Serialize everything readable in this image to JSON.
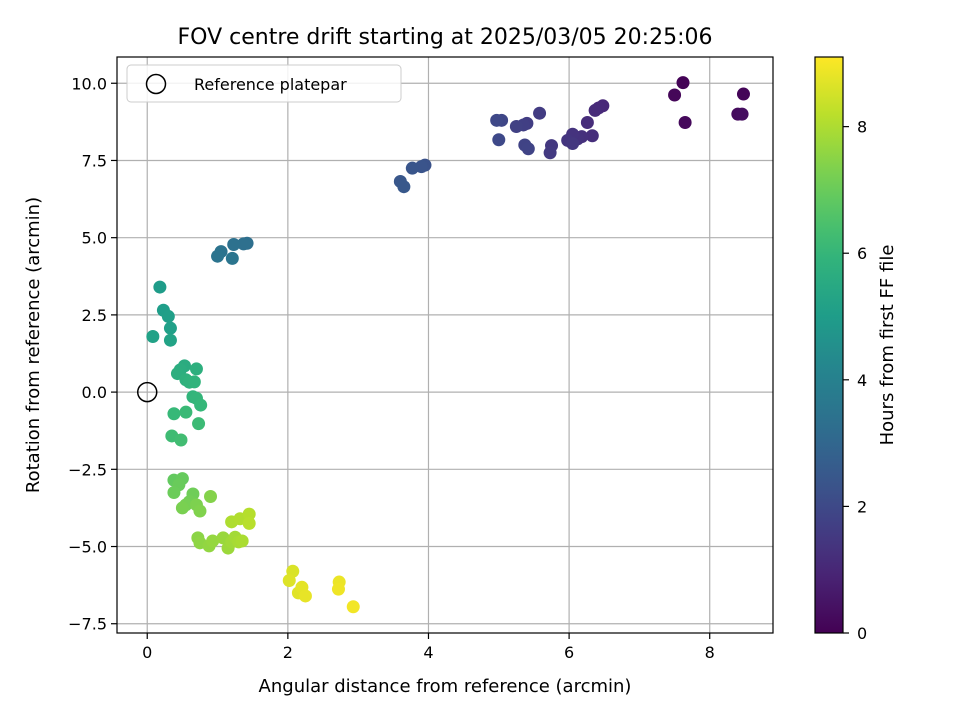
{
  "chart_data": {
    "type": "scatter",
    "title": "FOV centre drift starting at 2025/03/05 20:25:06",
    "xlabel": "Angular distance from reference (arcmin)",
    "ylabel": "Rotation from reference (arcmin)",
    "xlim": [
      -0.43,
      8.9
    ],
    "ylim": [
      -7.8,
      10.85
    ],
    "xticks": [
      "0",
      "2",
      "4",
      "6",
      "8"
    ],
    "yticks": [
      "−7.5",
      "−5.0",
      "−2.5",
      "0.0",
      "2.5",
      "5.0",
      "7.5",
      "10.0"
    ],
    "grid": true,
    "legend": {
      "placement": "top-left",
      "entries": [
        "Reference platepar"
      ]
    },
    "reference_point": {
      "x": 0,
      "y": 0
    },
    "colorbar": {
      "label": "Hours from first FF file",
      "range": [
        0,
        9.1
      ],
      "ticks": [
        "0",
        "2",
        "4",
        "6",
        "8"
      ],
      "colormap": "viridis"
    },
    "points": [
      {
        "x": 7.62,
        "y": 10.02,
        "c": 0.05
      },
      {
        "x": 8.48,
        "y": 9.65,
        "c": 0.1
      },
      {
        "x": 7.5,
        "y": 9.62,
        "c": 0.15
      },
      {
        "x": 7.65,
        "y": 8.73,
        "c": 0.2
      },
      {
        "x": 8.4,
        "y": 9.0,
        "c": 0.25
      },
      {
        "x": 8.46,
        "y": 9.0,
        "c": 0.3
      },
      {
        "x": 6.48,
        "y": 9.27,
        "c": 1.0
      },
      {
        "x": 6.42,
        "y": 9.2,
        "c": 1.05
      },
      {
        "x": 6.37,
        "y": 9.12,
        "c": 1.1
      },
      {
        "x": 6.26,
        "y": 8.73,
        "c": 1.15
      },
      {
        "x": 6.33,
        "y": 8.3,
        "c": 1.2
      },
      {
        "x": 6.18,
        "y": 8.27,
        "c": 1.25
      },
      {
        "x": 6.12,
        "y": 8.2,
        "c": 1.3
      },
      {
        "x": 6.05,
        "y": 8.35,
        "c": 1.35
      },
      {
        "x": 5.98,
        "y": 8.15,
        "c": 1.4
      },
      {
        "x": 6.05,
        "y": 8.05,
        "c": 1.45
      },
      {
        "x": 5.75,
        "y": 7.98,
        "c": 1.5
      },
      {
        "x": 5.73,
        "y": 7.75,
        "c": 1.55
      },
      {
        "x": 5.58,
        "y": 9.03,
        "c": 1.6
      },
      {
        "x": 5.4,
        "y": 8.7,
        "c": 1.65
      },
      {
        "x": 5.35,
        "y": 8.65,
        "c": 1.7
      },
      {
        "x": 5.25,
        "y": 8.6,
        "c": 1.75
      },
      {
        "x": 5.37,
        "y": 8.0,
        "c": 1.8
      },
      {
        "x": 5.42,
        "y": 7.88,
        "c": 1.85
      },
      {
        "x": 5.04,
        "y": 8.8,
        "c": 1.9
      },
      {
        "x": 4.97,
        "y": 8.8,
        "c": 1.95
      },
      {
        "x": 5.0,
        "y": 8.17,
        "c": 2.0
      },
      {
        "x": 3.95,
        "y": 7.35,
        "c": 2.3
      },
      {
        "x": 3.9,
        "y": 7.3,
        "c": 2.35
      },
      {
        "x": 3.77,
        "y": 7.25,
        "c": 2.4
      },
      {
        "x": 3.6,
        "y": 6.82,
        "c": 2.45
      },
      {
        "x": 3.65,
        "y": 6.65,
        "c": 2.5
      },
      {
        "x": 1.42,
        "y": 4.82,
        "c": 3.3
      },
      {
        "x": 1.37,
        "y": 4.8,
        "c": 3.35
      },
      {
        "x": 1.23,
        "y": 4.78,
        "c": 3.4
      },
      {
        "x": 1.05,
        "y": 4.55,
        "c": 3.45
      },
      {
        "x": 1.0,
        "y": 4.4,
        "c": 3.5
      },
      {
        "x": 1.21,
        "y": 4.33,
        "c": 3.55
      },
      {
        "x": 0.18,
        "y": 3.4,
        "c": 5.0
      },
      {
        "x": 0.23,
        "y": 2.65,
        "c": 5.05
      },
      {
        "x": 0.3,
        "y": 2.45,
        "c": 5.1
      },
      {
        "x": 0.33,
        "y": 2.07,
        "c": 5.15
      },
      {
        "x": 0.08,
        "y": 1.8,
        "c": 5.2
      },
      {
        "x": 0.33,
        "y": 1.68,
        "c": 5.25
      },
      {
        "x": 0.53,
        "y": 0.85,
        "c": 5.6
      },
      {
        "x": 0.47,
        "y": 0.72,
        "c": 5.65
      },
      {
        "x": 0.43,
        "y": 0.6,
        "c": 5.7
      },
      {
        "x": 0.7,
        "y": 0.75,
        "c": 5.75
      },
      {
        "x": 0.55,
        "y": 0.4,
        "c": 5.8
      },
      {
        "x": 0.6,
        "y": 0.32,
        "c": 5.85
      },
      {
        "x": 0.67,
        "y": 0.33,
        "c": 5.9
      },
      {
        "x": 0.65,
        "y": -0.15,
        "c": 5.95
      },
      {
        "x": 0.7,
        "y": -0.2,
        "c": 6.0
      },
      {
        "x": 0.76,
        "y": -0.42,
        "c": 6.05
      },
      {
        "x": 0.38,
        "y": -0.7,
        "c": 6.1
      },
      {
        "x": 0.55,
        "y": -0.65,
        "c": 6.15
      },
      {
        "x": 0.73,
        "y": -1.02,
        "c": 6.2
      },
      {
        "x": 0.35,
        "y": -1.42,
        "c": 6.25
      },
      {
        "x": 0.48,
        "y": -1.55,
        "c": 6.3
      },
      {
        "x": 0.38,
        "y": -2.85,
        "c": 6.9
      },
      {
        "x": 0.5,
        "y": -2.8,
        "c": 6.95
      },
      {
        "x": 0.45,
        "y": -3.0,
        "c": 7.0
      },
      {
        "x": 0.38,
        "y": -3.25,
        "c": 7.05
      },
      {
        "x": 0.65,
        "y": -3.3,
        "c": 7.1
      },
      {
        "x": 0.6,
        "y": -3.55,
        "c": 7.15
      },
      {
        "x": 0.55,
        "y": -3.65,
        "c": 7.2
      },
      {
        "x": 0.5,
        "y": -3.75,
        "c": 7.25
      },
      {
        "x": 0.7,
        "y": -3.65,
        "c": 7.3
      },
      {
        "x": 0.75,
        "y": -3.85,
        "c": 7.35
      },
      {
        "x": 0.9,
        "y": -3.38,
        "c": 7.4
      },
      {
        "x": 0.72,
        "y": -4.72,
        "c": 7.5
      },
      {
        "x": 0.75,
        "y": -4.88,
        "c": 7.55
      },
      {
        "x": 0.88,
        "y": -4.98,
        "c": 7.6
      },
      {
        "x": 0.93,
        "y": -4.82,
        "c": 7.65
      },
      {
        "x": 1.08,
        "y": -4.72,
        "c": 7.7
      },
      {
        "x": 1.15,
        "y": -5.05,
        "c": 7.75
      },
      {
        "x": 1.2,
        "y": -4.85,
        "c": 7.8
      },
      {
        "x": 1.25,
        "y": -4.7,
        "c": 7.85
      },
      {
        "x": 1.3,
        "y": -4.85,
        "c": 7.9
      },
      {
        "x": 1.35,
        "y": -4.82,
        "c": 7.95
      },
      {
        "x": 1.2,
        "y": -4.2,
        "c": 8.0
      },
      {
        "x": 1.32,
        "y": -4.1,
        "c": 8.05
      },
      {
        "x": 1.45,
        "y": -3.95,
        "c": 8.1
      },
      {
        "x": 1.45,
        "y": -4.25,
        "c": 8.15
      },
      {
        "x": 2.07,
        "y": -5.8,
        "c": 8.6
      },
      {
        "x": 2.02,
        "y": -6.1,
        "c": 8.65
      },
      {
        "x": 2.15,
        "y": -6.5,
        "c": 8.7
      },
      {
        "x": 2.2,
        "y": -6.32,
        "c": 8.75
      },
      {
        "x": 2.25,
        "y": -6.6,
        "c": 8.8
      },
      {
        "x": 2.73,
        "y": -6.15,
        "c": 8.85
      },
      {
        "x": 2.72,
        "y": -6.38,
        "c": 8.9
      },
      {
        "x": 2.93,
        "y": -6.95,
        "c": 8.95
      }
    ]
  }
}
